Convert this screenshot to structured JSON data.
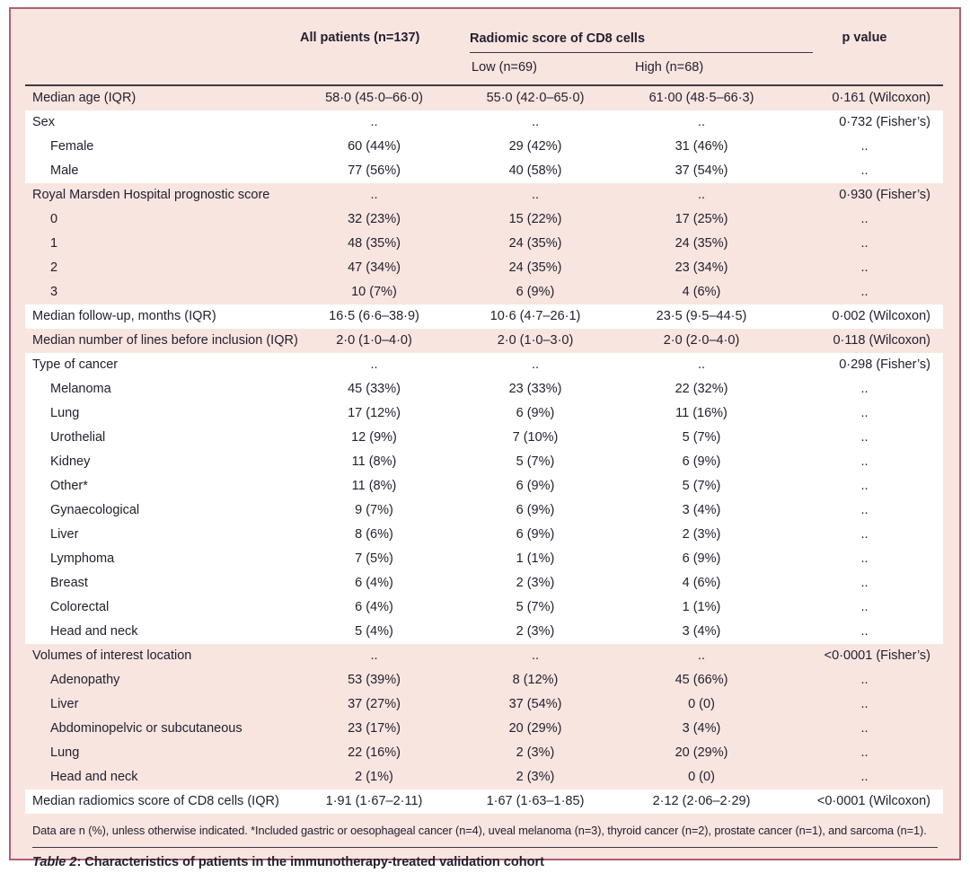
{
  "header": {
    "all_patients": "All patients (n=137)",
    "group": "Radiomic score of CD8 cells",
    "low": "Low (n=69)",
    "high": "High (n=68)",
    "p_value": "p value"
  },
  "rows": [
    {
      "label": "Median age (IQR)",
      "indent": false,
      "band": "pink",
      "all": "58·0 (45·0–66·0)",
      "low": "55·0 (42·0–65·0)",
      "high": "61·00 (48·5–66·3)",
      "p": "0·161 (Wilcoxon)"
    },
    {
      "label": "Sex",
      "indent": false,
      "band": "white",
      "all": "..",
      "low": "..",
      "high": "..",
      "p": "0·732 (Fisher’s)"
    },
    {
      "label": "Female",
      "indent": true,
      "band": "white",
      "all": "60 (44%)",
      "low": "29 (42%)",
      "high": "31 (46%)",
      "p": ".."
    },
    {
      "label": "Male",
      "indent": true,
      "band": "white",
      "all": "77 (56%)",
      "low": "40 (58%)",
      "high": "37 (54%)",
      "p": ".."
    },
    {
      "label": "Royal Marsden Hospital prognostic score",
      "indent": false,
      "band": "pink",
      "all": "..",
      "low": "..",
      "high": "..",
      "p": "0·930 (Fisher’s)"
    },
    {
      "label": "0",
      "indent": true,
      "band": "pink",
      "all": "32 (23%)",
      "low": "15 (22%)",
      "high": "17 (25%)",
      "p": ".."
    },
    {
      "label": "1",
      "indent": true,
      "band": "pink",
      "all": "48 (35%)",
      "low": "24 (35%)",
      "high": "24 (35%)",
      "p": ".."
    },
    {
      "label": "2",
      "indent": true,
      "band": "pink",
      "all": "47 (34%)",
      "low": "24 (35%)",
      "high": "23 (34%)",
      "p": ".."
    },
    {
      "label": "3",
      "indent": true,
      "band": "pink",
      "all": "10 (7%)",
      "low": "6 (9%)",
      "high": "4 (6%)",
      "p": ".."
    },
    {
      "label": "Median follow-up, months (IQR)",
      "indent": false,
      "band": "white",
      "all": "16·5 (6·6–38·9)",
      "low": "10·6 (4·7–26·1)",
      "high": "23·5 (9·5–44·5)",
      "p": "0·002 (Wilcoxon)"
    },
    {
      "label": "Median number of lines before inclusion (IQR)",
      "indent": false,
      "band": "pink",
      "all": "2·0 (1·0–4·0)",
      "low": "2·0 (1·0–3·0)",
      "high": "2·0 (2·0–4·0)",
      "p": "0·118 (Wilcoxon)"
    },
    {
      "label": "Type of cancer",
      "indent": false,
      "band": "white",
      "all": "..",
      "low": "..",
      "high": "..",
      "p": "0·298 (Fisher’s)"
    },
    {
      "label": "Melanoma",
      "indent": true,
      "band": "white",
      "all": "45 (33%)",
      "low": "23 (33%)",
      "high": "22 (32%)",
      "p": ".."
    },
    {
      "label": "Lung",
      "indent": true,
      "band": "white",
      "all": "17 (12%)",
      "low": "6 (9%)",
      "high": "11 (16%)",
      "p": ".."
    },
    {
      "label": "Urothelial",
      "indent": true,
      "band": "white",
      "all": "12 (9%)",
      "low": "7 (10%)",
      "high": "5 (7%)",
      "p": ".."
    },
    {
      "label": "Kidney",
      "indent": true,
      "band": "white",
      "all": "11 (8%)",
      "low": "5 (7%)",
      "high": "6 (9%)",
      "p": ".."
    },
    {
      "label": "Other*",
      "indent": true,
      "band": "white",
      "all": "11 (8%)",
      "low": "6 (9%)",
      "high": "5 (7%)",
      "p": ".."
    },
    {
      "label": "Gynaecological",
      "indent": true,
      "band": "white",
      "all": "9 (7%)",
      "low": "6 (9%)",
      "high": "3 (4%)",
      "p": ".."
    },
    {
      "label": "Liver",
      "indent": true,
      "band": "white",
      "all": "8 (6%)",
      "low": "6 (9%)",
      "high": "2 (3%)",
      "p": ".."
    },
    {
      "label": "Lymphoma",
      "indent": true,
      "band": "white",
      "all": "7 (5%)",
      "low": "1 (1%)",
      "high": "6 (9%)",
      "p": ".."
    },
    {
      "label": "Breast",
      "indent": true,
      "band": "white",
      "all": "6 (4%)",
      "low": "2 (3%)",
      "high": "4 (6%)",
      "p": ".."
    },
    {
      "label": "Colorectal",
      "indent": true,
      "band": "white",
      "all": "6 (4%)",
      "low": "5 (7%)",
      "high": "1 (1%)",
      "p": ".."
    },
    {
      "label": "Head and neck",
      "indent": true,
      "band": "white",
      "all": "5 (4%)",
      "low": "2 (3%)",
      "high": "3 (4%)",
      "p": ".."
    },
    {
      "label": "Volumes of interest location",
      "indent": false,
      "band": "pink",
      "all": "..",
      "low": "..",
      "high": "..",
      "p": "<0·0001 (Fisher’s)"
    },
    {
      "label": "Adenopathy",
      "indent": true,
      "band": "pink",
      "all": "53 (39%)",
      "low": "8 (12%)",
      "high": "45 (66%)",
      "p": ".."
    },
    {
      "label": "Liver",
      "indent": true,
      "band": "pink",
      "all": "37 (27%)",
      "low": "37 (54%)",
      "high": "0 (0)",
      "p": ".."
    },
    {
      "label": "Abdominopelvic or subcutaneous",
      "indent": true,
      "band": "pink",
      "all": "23 (17%)",
      "low": "20 (29%)",
      "high": "3 (4%)",
      "p": ".."
    },
    {
      "label": "Lung",
      "indent": true,
      "band": "pink",
      "all": "22 (16%)",
      "low": "2 (3%)",
      "high": "20 (29%)",
      "p": ".."
    },
    {
      "label": "Head and neck",
      "indent": true,
      "band": "pink",
      "all": "2 (1%)",
      "low": "2 (3%)",
      "high": "0 (0)",
      "p": ".."
    },
    {
      "label": "Median radiomics score of CD8 cells (IQR)",
      "indent": false,
      "band": "white",
      "all": "1·91 (1·67–2·11)",
      "low": "1·67 (1·63–1·85)",
      "high": "2·12 (2·06–2·29)",
      "p": "<0·0001 (Wilcoxon)"
    }
  ],
  "footnote": "Data are n (%), unless otherwise indicated. *Included gastric or oesophageal cancer (n=4), uveal melanoma (n=3), thyroid cancer (n=2), prostate cancer (n=1), and sarcoma (n=1).",
  "caption": {
    "label": "Table 2",
    "rest": ": Characteristics of patients in the immunotherapy-treated validation cohort"
  },
  "colors": {
    "frame_border": "#ae6270",
    "table_pink": "#f8e5e0",
    "band_white": "#ffffff",
    "rule_dark": "#3c3a44",
    "text": "#24202f"
  }
}
